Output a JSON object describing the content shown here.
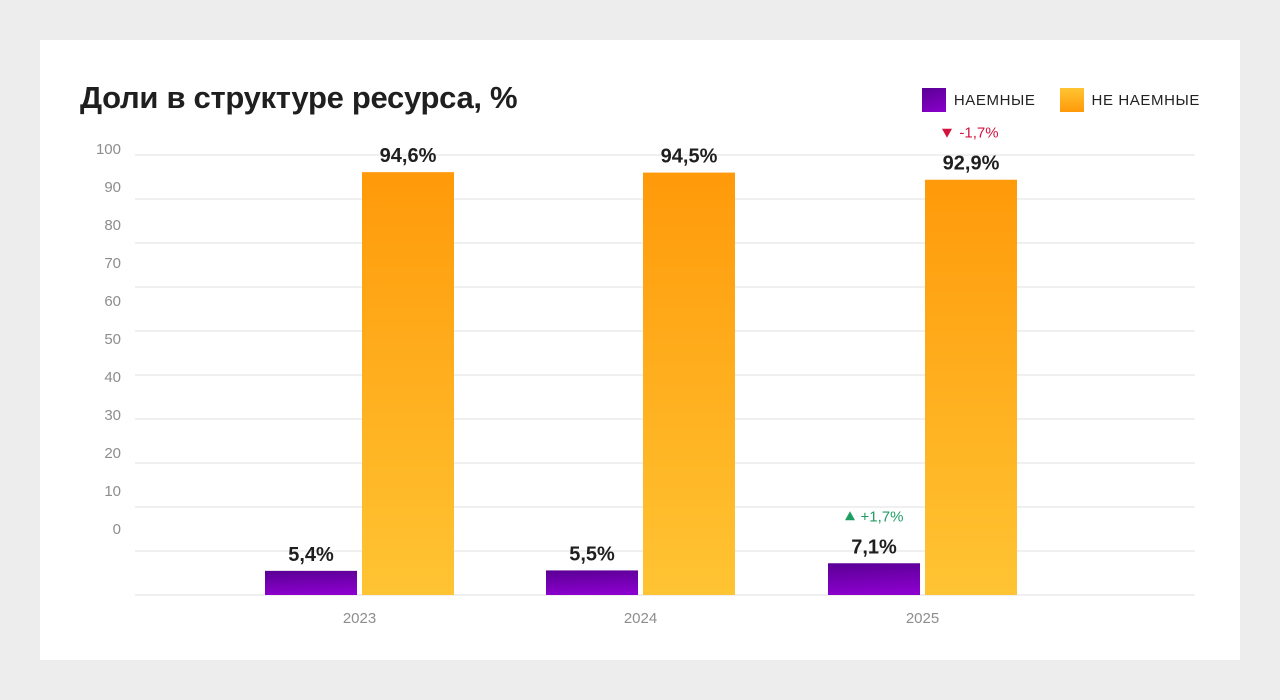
{
  "chart_data": {
    "type": "bar",
    "title": "Доли в структуре ресурса, %",
    "xlabel": "",
    "ylabel": "",
    "ylim": [
      0,
      100
    ],
    "yticks": [
      "100",
      "90",
      "80",
      "70",
      "60",
      "50",
      "40",
      "30",
      "20",
      "10",
      "0"
    ],
    "grid": true,
    "legend_position": "top-right",
    "categories": [
      "2023",
      "2024",
      "2025"
    ],
    "series": [
      {
        "name": "НАЕМНЫЕ",
        "color_top": "#5a0094",
        "color_bottom": "#8a00cc",
        "values": [
          5.4,
          5.5,
          7.1
        ],
        "labels": [
          "5,4%",
          "5,5%",
          "7,1%"
        ],
        "deltas": [
          null,
          null,
          {
            "text": "+1,7%",
            "direction": "up",
            "color": "#1f9e63"
          }
        ]
      },
      {
        "name": "НЕ НАЕМНЫЕ",
        "color_top": "#ff9a0a",
        "color_bottom": "#ffc433",
        "values": [
          94.6,
          94.5,
          92.9
        ],
        "labels": [
          "94,6%",
          "94,5%",
          "92,9%"
        ],
        "deltas": [
          null,
          null,
          {
            "text": "-1,7%",
            "direction": "down",
            "color": "#d4123e"
          }
        ]
      }
    ]
  }
}
